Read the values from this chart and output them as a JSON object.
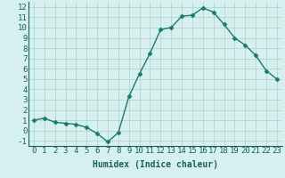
{
  "x": [
    0,
    1,
    2,
    3,
    4,
    5,
    6,
    7,
    8,
    9,
    10,
    11,
    12,
    13,
    14,
    15,
    16,
    17,
    18,
    19,
    20,
    21,
    22,
    23
  ],
  "y": [
    1,
    1.2,
    0.8,
    0.7,
    0.6,
    0.3,
    -0.3,
    -1.1,
    -0.2,
    3.3,
    5.5,
    7.5,
    9.8,
    10.0,
    11.1,
    11.2,
    11.9,
    11.5,
    10.3,
    9.0,
    8.3,
    7.3,
    5.8,
    5.0
  ],
  "line_color": "#1a7a6e",
  "marker": "D",
  "marker_size": 2.5,
  "bg_color": "#d6f0ef",
  "grid_color": "#b0ceca",
  "xlabel": "Humidex (Indice chaleur)",
  "xlim": [
    -0.5,
    23.5
  ],
  "ylim": [
    -1.5,
    12.5
  ],
  "yticks": [
    -1,
    0,
    1,
    2,
    3,
    4,
    5,
    6,
    7,
    8,
    9,
    10,
    11,
    12
  ],
  "xticks": [
    0,
    1,
    2,
    3,
    4,
    5,
    6,
    7,
    8,
    9,
    10,
    11,
    12,
    13,
    14,
    15,
    16,
    17,
    18,
    19,
    20,
    21,
    22,
    23
  ],
  "xlabel_fontsize": 7,
  "tick_fontsize": 6.5,
  "label_color": "#1a5f5a",
  "linewidth": 1.0
}
